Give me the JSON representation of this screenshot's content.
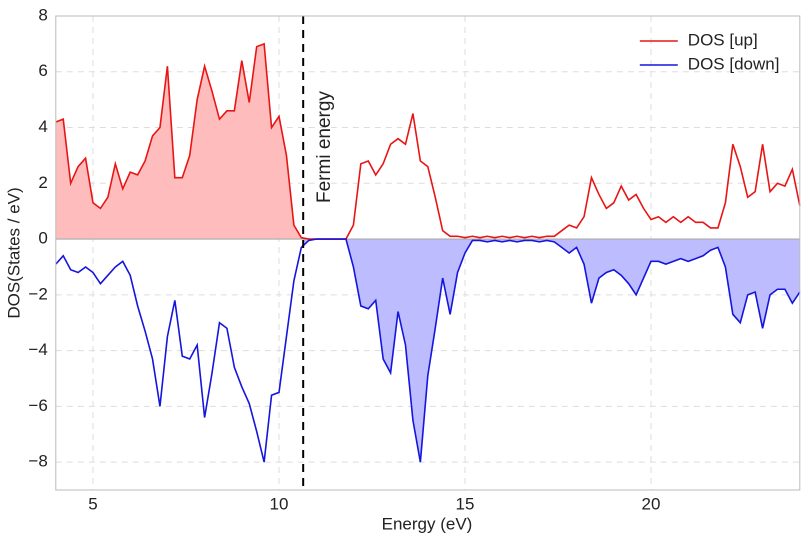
{
  "chart_data": {
    "type": "line",
    "xlabel": "Energy (eV)",
    "ylabel": "DOS(States / eV)",
    "annotation": "Fermi energy",
    "fermi_energy": 10.65,
    "x": [
      4.0,
      4.2,
      4.4,
      4.6,
      4.8,
      5.0,
      5.2,
      5.4,
      5.6,
      5.8,
      6.0,
      6.2,
      6.4,
      6.6,
      6.8,
      7.0,
      7.2,
      7.4,
      7.6,
      7.8,
      8.0,
      8.2,
      8.4,
      8.6,
      8.8,
      9.0,
      9.2,
      9.4,
      9.6,
      9.8,
      10.0,
      10.2,
      10.4,
      10.6,
      10.8,
      11.0,
      11.2,
      11.4,
      11.6,
      11.8,
      12.0,
      12.2,
      12.4,
      12.6,
      12.8,
      13.0,
      13.2,
      13.4,
      13.6,
      13.8,
      14.0,
      14.2,
      14.4,
      14.6,
      14.8,
      15.0,
      15.2,
      15.4,
      15.6,
      15.8,
      16.0,
      16.2,
      16.4,
      16.6,
      16.8,
      17.0,
      17.2,
      17.4,
      17.6,
      17.8,
      18.0,
      18.2,
      18.4,
      18.6,
      18.8,
      19.0,
      19.2,
      19.4,
      19.6,
      19.8,
      20.0,
      20.2,
      20.4,
      20.6,
      20.8,
      21.0,
      21.2,
      21.4,
      21.6,
      21.8,
      22.0,
      22.2,
      22.4,
      22.6,
      22.8,
      23.0,
      23.2,
      23.4,
      23.6,
      23.8,
      24.0
    ],
    "series": [
      {
        "name": "DOS [up]",
        "color": "#e81515",
        "fill": "#ffbcbc",
        "fill_side": "below_fermi",
        "values": [
          4.2,
          4.3,
          2.0,
          2.6,
          2.9,
          1.3,
          1.1,
          1.5,
          2.7,
          1.8,
          2.4,
          2.3,
          2.8,
          3.7,
          4.0,
          6.2,
          2.2,
          2.2,
          3.0,
          5.0,
          6.2,
          5.3,
          4.3,
          4.6,
          4.6,
          6.4,
          4.9,
          6.9,
          7.0,
          4.0,
          4.4,
          3.0,
          0.5,
          0.05,
          0,
          0,
          0,
          0,
          0,
          0,
          0.5,
          2.7,
          2.8,
          2.3,
          2.7,
          3.4,
          3.6,
          3.4,
          4.5,
          2.8,
          2.6,
          1.5,
          0.3,
          0.1,
          0.1,
          0.05,
          0.1,
          0.05,
          0.1,
          0.05,
          0.1,
          0.05,
          0.1,
          0.05,
          0.1,
          0.05,
          0.1,
          0.1,
          0.3,
          0.5,
          0.4,
          0.8,
          2.2,
          1.6,
          1.1,
          1.3,
          1.9,
          1.4,
          1.6,
          1.1,
          0.7,
          0.8,
          0.6,
          0.8,
          0.6,
          0.8,
          0.6,
          0.6,
          0.4,
          0.4,
          1.3,
          3.4,
          2.6,
          1.5,
          1.7,
          3.4,
          1.7,
          2.0,
          1.9,
          2.5,
          1.2
        ]
      },
      {
        "name": "DOS [down]",
        "color": "#1515dd",
        "fill": "#bcbcff",
        "fill_side": "above_fermi",
        "values": [
          -0.9,
          -0.6,
          -1.1,
          -1.2,
          -1.0,
          -1.2,
          -1.6,
          -1.3,
          -1.0,
          -0.8,
          -1.3,
          -2.4,
          -3.3,
          -4.3,
          -6.0,
          -3.5,
          -2.2,
          -4.2,
          -4.3,
          -3.8,
          -6.4,
          -4.8,
          -3.0,
          -3.2,
          -4.6,
          -5.3,
          -5.9,
          -6.9,
          -8.0,
          -5.6,
          -5.5,
          -3.5,
          -1.5,
          -0.3,
          -0.05,
          0,
          0,
          0,
          0,
          0,
          -1.0,
          -2.4,
          -2.5,
          -2.2,
          -4.3,
          -4.8,
          -2.6,
          -3.8,
          -6.5,
          -8.0,
          -4.9,
          -3.2,
          -1.4,
          -2.7,
          -1.2,
          -0.5,
          -0.05,
          -0.05,
          -0.1,
          -0.05,
          -0.1,
          -0.05,
          -0.1,
          -0.05,
          -0.05,
          -0.1,
          -0.05,
          -0.1,
          -0.3,
          -0.5,
          -0.3,
          -0.9,
          -2.3,
          -1.4,
          -1.2,
          -1.1,
          -1.3,
          -1.6,
          -2.0,
          -1.4,
          -0.8,
          -0.8,
          -0.9,
          -0.8,
          -0.7,
          -0.8,
          -0.7,
          -0.6,
          -0.4,
          -0.3,
          -1.0,
          -2.7,
          -3.0,
          -2.0,
          -1.9,
          -3.2,
          -2.0,
          -1.8,
          -1.8,
          -2.3,
          -1.9
        ]
      }
    ],
    "xlim": [
      4,
      24
    ],
    "xticks": [
      5,
      10,
      15,
      20
    ],
    "ylim": [
      -9,
      8
    ],
    "yticks": [
      {
        "value": -8,
        "label": "−8"
      },
      {
        "value": -6,
        "label": "−6"
      },
      {
        "value": -4,
        "label": "−4"
      },
      {
        "value": -2,
        "label": "−2"
      },
      0,
      2,
      4,
      6,
      8
    ],
    "grid": true,
    "legend": "upper right"
  }
}
